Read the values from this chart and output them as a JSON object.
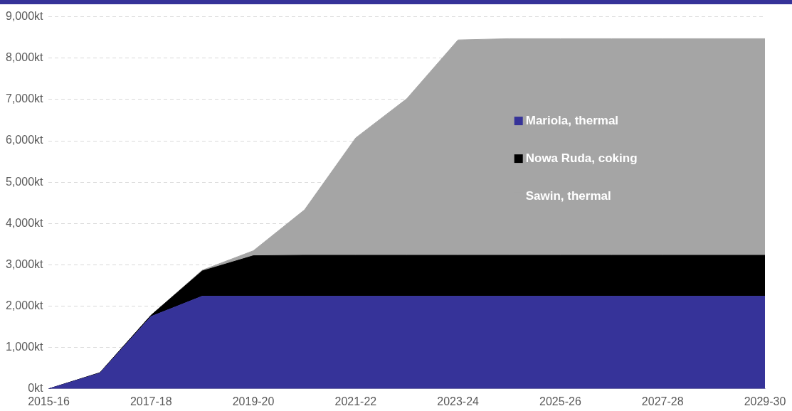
{
  "chart_data": {
    "type": "area",
    "stacked": true,
    "categories": [
      "2015-16",
      null,
      "2017-18",
      null,
      "2019-20",
      null,
      "2021-22",
      null,
      "2023-24",
      null,
      "2025-26",
      null,
      "2027-28",
      null,
      "2029-30"
    ],
    "series": [
      {
        "name": "Mariola, thermal",
        "color": "#363399",
        "values": [
          0,
          380,
          1750,
          2240,
          2240,
          2240,
          2240,
          2240,
          2240,
          2240,
          2240,
          2240,
          2240,
          2240,
          2240
        ]
      },
      {
        "name": "Nowa Ruda, coking",
        "color": "#000000",
        "values": [
          0,
          10,
          30,
          610,
          980,
          990,
          990,
          990,
          990,
          990,
          990,
          990,
          990,
          990,
          990
        ]
      },
      {
        "name": "Sawin, thermal",
        "color": "#a5a5a5",
        "values": [
          0,
          0,
          0,
          20,
          120,
          1100,
          2840,
          3790,
          5210,
          5240,
          5240,
          5240,
          5240,
          5240,
          5240
        ]
      }
    ],
    "ylim": [
      0,
      9000
    ],
    "yticks": [
      {
        "value": 0,
        "label": "0kt"
      },
      {
        "value": 1000,
        "label": "1,000kt"
      },
      {
        "value": 2000,
        "label": "2,000kt"
      },
      {
        "value": 3000,
        "label": "3,000kt"
      },
      {
        "value": 4000,
        "label": "4,000kt"
      },
      {
        "value": 5000,
        "label": "5,000kt"
      },
      {
        "value": 6000,
        "label": "6,000kt"
      },
      {
        "value": 7000,
        "label": "7,000kt"
      },
      {
        "value": 8000,
        "label": "8,000kt"
      },
      {
        "value": 9000,
        "label": "9,000kt"
      }
    ],
    "grid": "y",
    "legend": "right"
  }
}
